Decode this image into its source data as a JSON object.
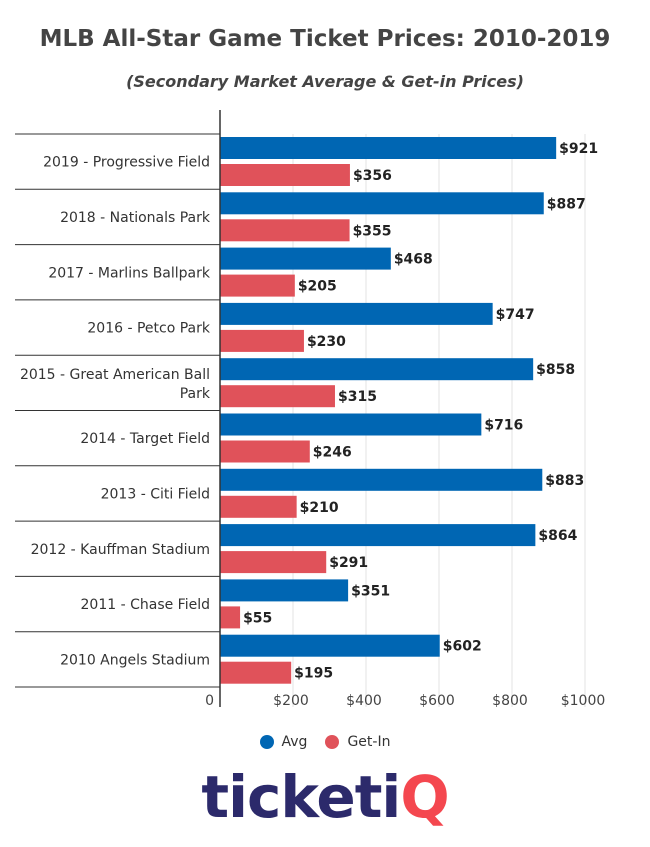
{
  "title": "MLB All-Star Game Ticket Prices: 2010-2019",
  "subtitle": "(Secondary Market Average & Get-in Prices)",
  "colors": {
    "avg": "#0066b3",
    "getin": "#e0525a",
    "grid": "#e3e3e3",
    "axis": "#333333"
  },
  "legend": {
    "avg": "Avg",
    "getin": "Get-In"
  },
  "logo": {
    "text_main": "ticketi",
    "text_accent": "Q"
  },
  "chart_data": {
    "type": "bar",
    "orientation": "horizontal",
    "categories": [
      "2019 - Progressive Field",
      "2018 - Nationals Park",
      "2017 - Marlins Ballpark",
      "2016 - Petco Park",
      "2015 - Great American Ball Park",
      "2014 - Target Field",
      "2013 - Citi Field",
      "2012 - Kauffman Stadium",
      "2011 - Chase Field",
      "2010 Angels Stadium"
    ],
    "series": [
      {
        "name": "Avg",
        "values": [
          921,
          887,
          468,
          747,
          858,
          716,
          883,
          864,
          351,
          602
        ],
        "labels": [
          "$921",
          "$887",
          "$468",
          "$747",
          "$858",
          "$716",
          "$883",
          "$864",
          "$351",
          "$602"
        ]
      },
      {
        "name": "Get-In",
        "values": [
          356,
          355,
          205,
          230,
          315,
          246,
          210,
          291,
          55,
          195
        ],
        "labels": [
          "$356",
          "$355",
          "$205",
          "$230",
          "$315",
          "$246",
          "$210",
          "$291",
          "$55",
          "$195"
        ]
      }
    ],
    "xlim": [
      0,
      1000
    ],
    "xticks": [
      0,
      200,
      400,
      600,
      800,
      1000
    ],
    "xtick_labels": [
      "0",
      "$200",
      "$400",
      "$600",
      "$800",
      "$1000"
    ],
    "grid": true,
    "legend_position": "bottom"
  }
}
